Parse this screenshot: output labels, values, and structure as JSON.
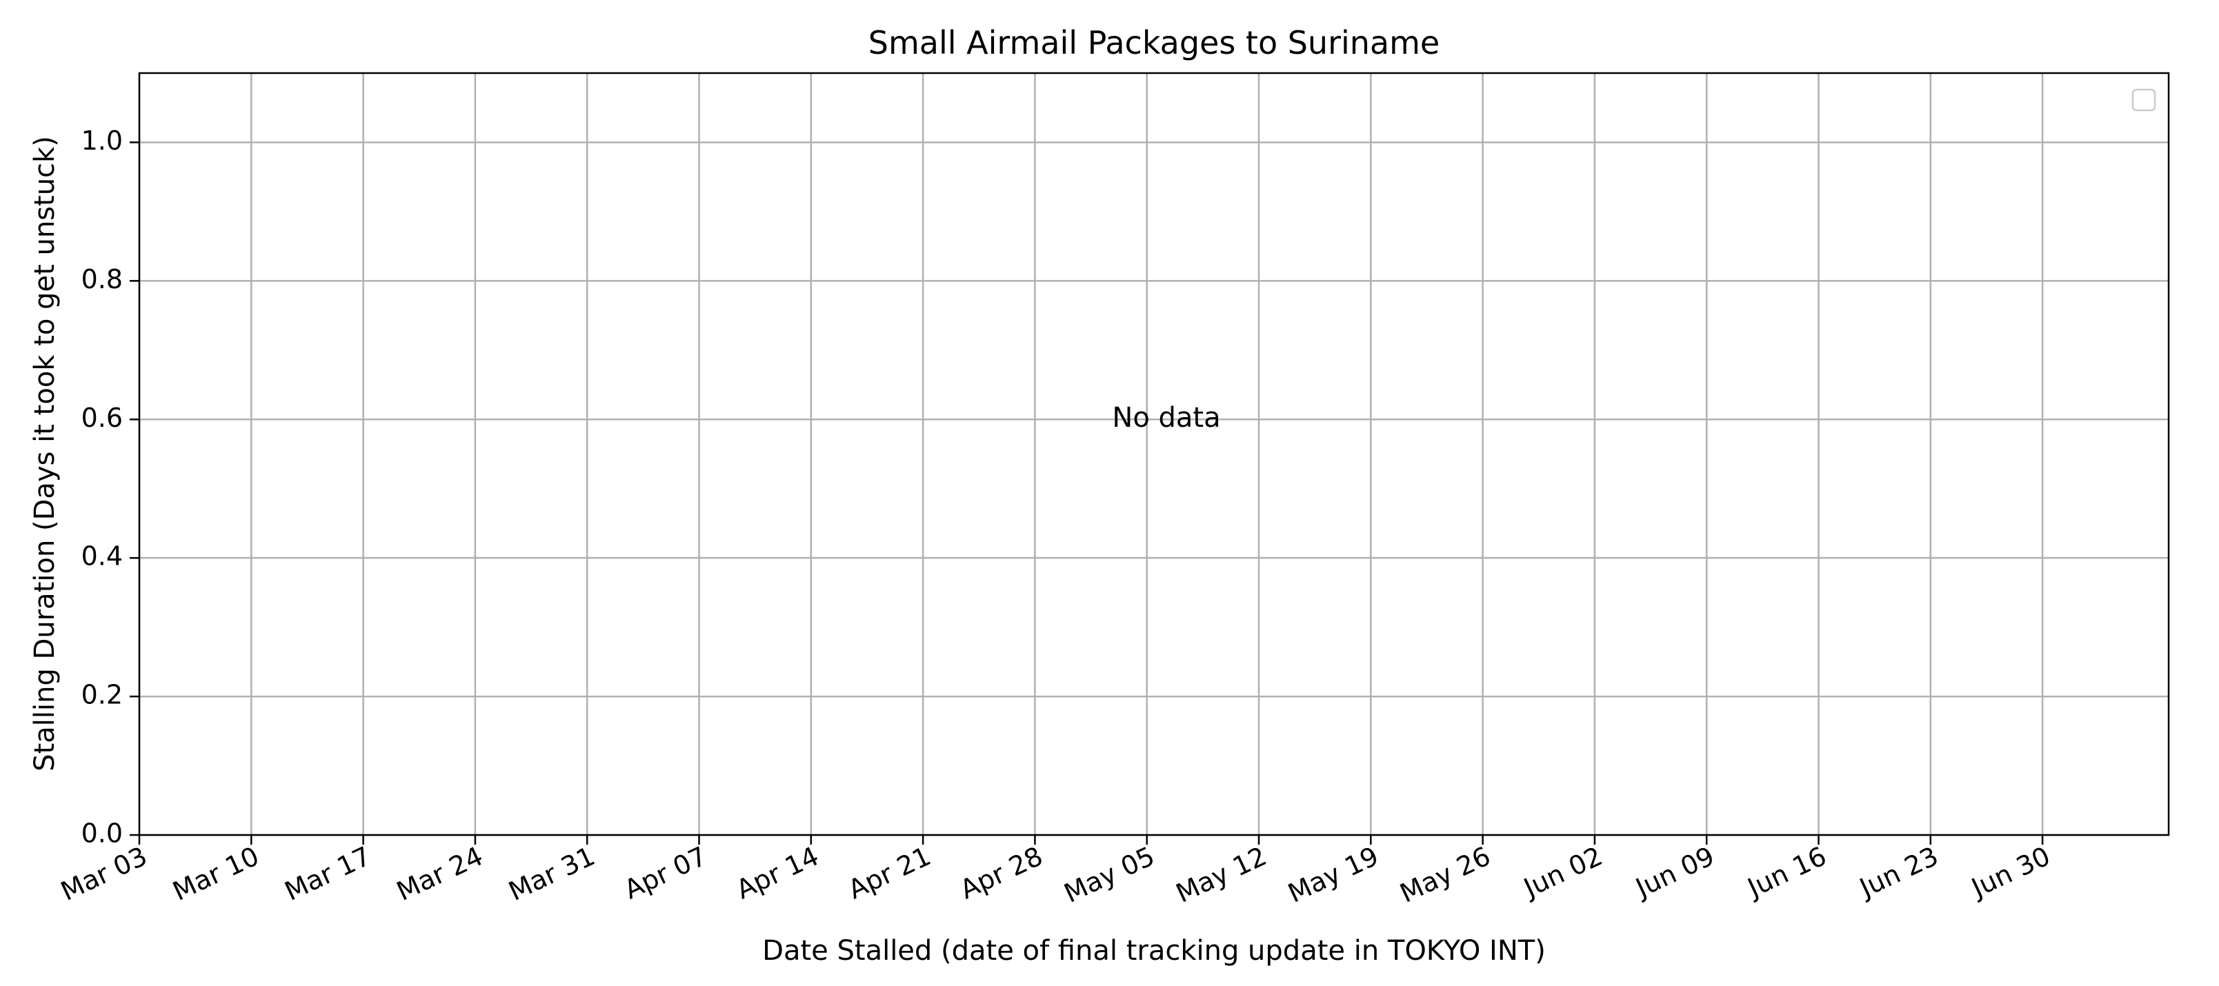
{
  "chart_data": {
    "type": "line",
    "title": "Small Airmail Packages to Suriname",
    "xlabel": "Date Stalled (date of final tracking update in TOKYO INT)",
    "ylabel": "Stalling Duration (Days it took to get unstuck)",
    "x_ticks": [
      "Mar 03",
      "Mar 10",
      "Mar 17",
      "Mar 24",
      "Mar 31",
      "Apr 07",
      "Apr 14",
      "Apr 21",
      "Apr 28",
      "May 05",
      "May 12",
      "May 19",
      "May 26",
      "Jun 02",
      "Jun 09",
      "Jun 16",
      "Jun 23",
      "Jun 30"
    ],
    "xlim": [
      "Mar 03",
      "Jul 10"
    ],
    "y_ticks": [
      "0.0",
      "0.2",
      "0.4",
      "0.6",
      "0.8",
      "1.0"
    ],
    "ylim": [
      0,
      1.1
    ],
    "series": [],
    "grid": true,
    "legend": "top-right",
    "legend_entries": [],
    "annotation": "No data",
    "colors": {
      "grid": "#b0b0b0",
      "axes": "#000000",
      "background": "#ffffff"
    }
  }
}
